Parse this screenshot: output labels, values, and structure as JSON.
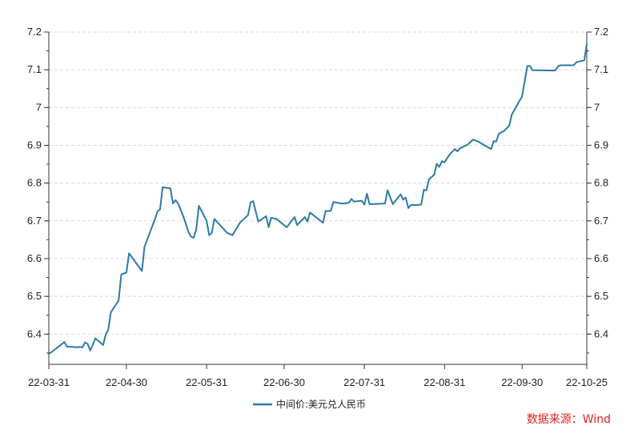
{
  "chart_data": {
    "type": "line",
    "grid": true,
    "xlabel": "",
    "ylabel": "",
    "ylim": [
      6.32,
      7.2
    ],
    "yticks": [
      6.4,
      6.5,
      6.6,
      6.7,
      6.8,
      6.9,
      7,
      7.1,
      7.2
    ],
    "ytick_labels": [
      "6.4",
      "6.5",
      "6.6",
      "6.7",
      "6.8",
      "6.9",
      "7",
      "7.1",
      "7.2"
    ],
    "xlim": [
      "2022-03-31",
      "2022-10-25"
    ],
    "xticks": [
      "2022-03-31",
      "2022-04-30",
      "2022-05-31",
      "2022-06-30",
      "2022-07-31",
      "2022-08-31",
      "2022-09-30",
      "2022-10-25"
    ],
    "xtick_labels": [
      "22-03-31",
      "22-04-30",
      "22-05-31",
      "22-06-30",
      "22-07-31",
      "22-08-31",
      "22-09-30",
      "22-10-25"
    ],
    "legend": "bottom-center",
    "series": [
      {
        "name": "中间价:美元兑人民币",
        "color": "#2b7ba5",
        "points": [
          [
            "2022-03-31",
            6.348
          ],
          [
            "2022-04-01",
            6.352
          ],
          [
            "2022-04-06",
            6.379
          ],
          [
            "2022-04-07",
            6.367
          ],
          [
            "2022-04-11",
            6.365
          ],
          [
            "2022-04-12",
            6.366
          ],
          [
            "2022-04-13",
            6.365
          ],
          [
            "2022-04-14",
            6.378
          ],
          [
            "2022-04-15",
            6.374
          ],
          [
            "2022-04-16",
            6.357
          ],
          [
            "2022-04-17",
            6.372
          ],
          [
            "2022-04-18",
            6.389
          ],
          [
            "2022-04-21",
            6.371
          ],
          [
            "2022-04-22",
            6.399
          ],
          [
            "2022-04-23",
            6.412
          ],
          [
            "2022-04-24",
            6.458
          ],
          [
            "2022-04-27",
            6.489
          ],
          [
            "2022-04-28",
            6.558
          ],
          [
            "2022-04-30",
            6.563
          ],
          [
            "2022-05-01",
            6.614
          ],
          [
            "2022-05-06",
            6.567
          ],
          [
            "2022-05-07",
            6.631
          ],
          [
            "2022-05-11",
            6.704
          ],
          [
            "2022-05-12",
            6.725
          ],
          [
            "2022-05-13",
            6.73
          ],
          [
            "2022-05-14",
            6.789
          ],
          [
            "2022-05-17",
            6.786
          ],
          [
            "2022-05-18",
            6.746
          ],
          [
            "2022-05-19",
            6.755
          ],
          [
            "2022-05-20",
            6.746
          ],
          [
            "2022-05-22",
            6.712
          ],
          [
            "2022-05-24",
            6.67
          ],
          [
            "2022-05-25",
            6.658
          ],
          [
            "2022-05-26",
            6.655
          ],
          [
            "2022-05-27",
            6.677
          ],
          [
            "2022-05-28",
            6.74
          ],
          [
            "2022-05-31",
            6.7
          ],
          [
            "2022-06-01",
            6.662
          ],
          [
            "2022-06-02",
            6.668
          ],
          [
            "2022-06-03",
            6.705
          ],
          [
            "2022-06-08",
            6.668
          ],
          [
            "2022-06-10",
            6.662
          ],
          [
            "2022-06-13",
            6.696
          ],
          [
            "2022-06-16",
            6.715
          ],
          [
            "2022-06-17",
            6.749
          ],
          [
            "2022-06-18",
            6.752
          ],
          [
            "2022-06-20",
            6.698
          ],
          [
            "2022-06-23",
            6.712
          ],
          [
            "2022-06-24",
            6.683
          ],
          [
            "2022-06-25",
            6.708
          ],
          [
            "2022-06-27",
            6.705
          ],
          [
            "2022-07-01",
            6.683
          ],
          [
            "2022-07-04",
            6.71
          ],
          [
            "2022-07-05",
            6.689
          ],
          [
            "2022-07-08",
            6.71
          ],
          [
            "2022-07-09",
            6.698
          ],
          [
            "2022-07-10",
            6.722
          ],
          [
            "2022-07-15",
            6.695
          ],
          [
            "2022-07-16",
            6.726
          ],
          [
            "2022-07-18",
            6.726
          ],
          [
            "2022-07-19",
            6.75
          ],
          [
            "2022-07-22",
            6.746
          ],
          [
            "2022-07-23",
            6.746
          ],
          [
            "2022-07-25",
            6.748
          ],
          [
            "2022-07-26",
            6.758
          ],
          [
            "2022-07-27",
            6.751
          ],
          [
            "2022-07-30",
            6.753
          ],
          [
            "2022-07-31",
            6.743
          ],
          [
            "2022-08-01",
            6.772
          ],
          [
            "2022-08-02",
            6.744
          ],
          [
            "2022-08-05",
            6.745
          ],
          [
            "2022-08-08",
            6.746
          ],
          [
            "2022-08-09",
            6.781
          ],
          [
            "2022-08-11",
            6.744
          ],
          [
            "2022-08-14",
            6.77
          ],
          [
            "2022-08-15",
            6.756
          ],
          [
            "2022-08-16",
            6.762
          ],
          [
            "2022-08-17",
            6.734
          ],
          [
            "2022-08-18",
            6.742
          ],
          [
            "2022-08-20",
            6.742
          ],
          [
            "2022-08-22",
            6.743
          ],
          [
            "2022-08-23",
            6.782
          ],
          [
            "2022-08-24",
            6.781
          ],
          [
            "2022-08-25",
            6.81
          ],
          [
            "2022-08-27",
            6.822
          ],
          [
            "2022-08-28",
            6.851
          ],
          [
            "2022-08-29",
            6.843
          ],
          [
            "2022-08-30",
            6.858
          ],
          [
            "2022-08-31",
            6.855
          ],
          [
            "2022-09-02",
            6.876
          ],
          [
            "2022-09-04",
            6.89
          ],
          [
            "2022-09-05",
            6.884
          ],
          [
            "2022-09-06",
            6.892
          ],
          [
            "2022-09-09",
            6.902
          ],
          [
            "2022-09-11",
            6.915
          ],
          [
            "2022-09-13",
            6.91
          ],
          [
            "2022-09-18",
            6.89
          ],
          [
            "2022-09-19",
            6.911
          ],
          [
            "2022-09-20",
            6.91
          ],
          [
            "2022-09-21",
            6.931
          ],
          [
            "2022-09-23",
            6.938
          ],
          [
            "2022-09-25",
            6.952
          ],
          [
            "2022-09-26",
            6.981
          ],
          [
            "2022-09-30",
            7.03
          ],
          [
            "2022-10-02",
            7.11
          ],
          [
            "2022-10-03",
            7.11
          ],
          [
            "2022-10-04",
            7.099
          ],
          [
            "2022-10-12",
            7.098
          ],
          [
            "2022-10-13",
            7.099
          ],
          [
            "2022-10-14",
            7.11
          ],
          [
            "2022-10-15",
            7.112
          ],
          [
            "2022-10-20",
            7.112
          ],
          [
            "2022-10-21",
            7.12
          ],
          [
            "2022-10-24",
            7.125
          ],
          [
            "2022-10-25",
            7.168
          ]
        ]
      }
    ],
    "source": "数据来源：Wind"
  }
}
